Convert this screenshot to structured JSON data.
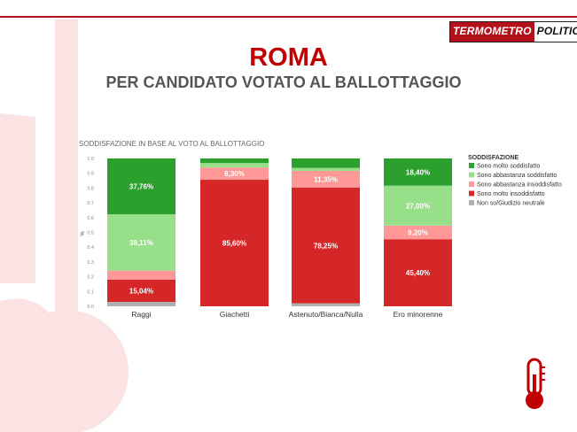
{
  "header": {
    "logo_left": "TERMOMETRO",
    "logo_right": "POLITICO",
    "title": "ROMA",
    "subtitle": "PER CANDIDATO VOTATO AL BALLOTTAGGIO"
  },
  "colors": {
    "brand_red": "#b3121c",
    "title_red": "#c00000",
    "bg_shape": "#fbe3e3",
    "molto_soddisfatto": "#2ca02c",
    "abbastanza_soddisfatto": "#98df8a",
    "abbastanza_insoddisfatto": "#ff9896",
    "molto_insoddisfatto": "#d62728",
    "neutrale": "#b0b0b0"
  },
  "icons": {
    "thermometer": "thermometer-icon"
  },
  "chart_data": {
    "type": "bar",
    "stacked": true,
    "title": "SODDISFAZIONE IN BASE AL VOTO AL BALLOTTAGGIO",
    "ylabel": "%",
    "ylim": [
      0,
      1
    ],
    "yticks": [
      "0.0",
      "0.1",
      "0.2",
      "0.3",
      "0.4",
      "0.5",
      "0.6",
      "0.7",
      "0.8",
      "0.9",
      "1.0"
    ],
    "categories": [
      "Raggi",
      "Giachetti",
      "Astenuto/Bianca/Nulla",
      "Ero minorenne"
    ],
    "legend_title": "SODDISFAZIONE",
    "legend_position": "right",
    "series": [
      {
        "name": "Non so/Giudizio neutrale",
        "color": "#b0b0b0",
        "values": [
          0.03,
          0.0,
          0.02,
          0.0
        ],
        "labels": [
          "",
          "",
          "",
          ""
        ]
      },
      {
        "name": "Sono molto insoddisfatto",
        "color": "#d62728",
        "values": [
          0.1504,
          0.856,
          0.7825,
          0.454
        ],
        "labels": [
          "15,04%",
          "85,60%",
          "78,25%",
          "45,40%"
        ]
      },
      {
        "name": "Sono abbastanza insoddisfatto",
        "color": "#ff9896",
        "values": [
          0.0609,
          0.083,
          0.1135,
          0.092
        ],
        "labels": [
          "",
          "8,30%",
          "11,35%",
          "9,20%"
        ]
      },
      {
        "name": "Sono abbastanza soddisfatto",
        "color": "#98df8a",
        "values": [
          0.3811,
          0.03,
          0.02,
          0.27
        ],
        "labels": [
          "38,11%",
          "",
          "",
          "27,00%"
        ]
      },
      {
        "name": "Sono molto soddisfatto",
        "color": "#2ca02c",
        "values": [
          0.3776,
          0.031,
          0.064,
          0.184
        ],
        "labels": [
          "37,76%",
          "",
          "",
          "18,40%"
        ]
      }
    ],
    "legend_order": [
      "Sono molto soddisfatto",
      "Sono abbastanza soddisfatto",
      "Sono abbastanza insoddisfatto",
      "Sono molto insoddisfatto",
      "Non so/Giudizio neutrale"
    ]
  }
}
